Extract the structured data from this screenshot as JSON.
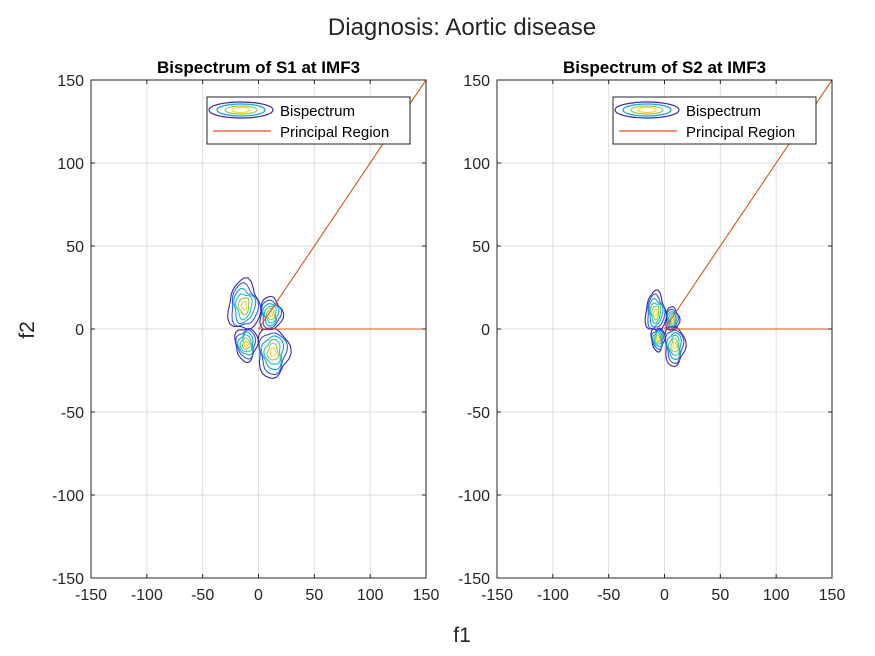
{
  "figure": {
    "suptitle": "Diagnosis: Aortic disease",
    "xlabel": "f1",
    "ylabel": "f2"
  },
  "chart_data": [
    {
      "type": "contour",
      "title": "Bispectrum of S1 at IMF3",
      "xlim": [
        -150,
        150
      ],
      "ylim": [
        -150,
        150
      ],
      "xticks": [
        -150,
        -100,
        -50,
        0,
        50,
        100,
        150
      ],
      "yticks": [
        -150,
        -100,
        -50,
        0,
        50,
        100,
        150
      ],
      "xtick_labels": [
        "-150",
        "-100",
        "-50",
        "0",
        "50",
        "100",
        "150"
      ],
      "ytick_labels": [
        "-150",
        "-100",
        "-50",
        "0",
        "50",
        "100",
        "150"
      ],
      "grid": true,
      "legend": {
        "position": "top-right",
        "entries": [
          "Bispectrum",
          "Principal Region"
        ]
      },
      "series": [
        {
          "name": "Bispectrum",
          "kind": "contour",
          "lobes": [
            {
              "cx": -13,
              "cy": 14,
              "rx": 14,
              "ry": 15
            },
            {
              "cx": 11,
              "cy": 9,
              "rx": 10,
              "ry": 10
            },
            {
              "cx": 13,
              "cy": -14,
              "rx": 14,
              "ry": 15
            },
            {
              "cx": -11,
              "cy": -9,
              "rx": 10,
              "ry": 10
            }
          ],
          "levels": 6
        },
        {
          "name": "Principal Region",
          "kind": "line",
          "color": "#d95319",
          "segments": [
            {
              "x": [
                0,
                150
              ],
              "y": [
                0,
                150
              ]
            },
            {
              "x": [
                0,
                150
              ],
              "y": [
                0,
                0
              ]
            }
          ]
        }
      ]
    },
    {
      "type": "contour",
      "title": "Bispectrum of S2 at IMF3",
      "xlim": [
        -150,
        150
      ],
      "ylim": [
        -150,
        150
      ],
      "xticks": [
        -150,
        -100,
        -50,
        0,
        50,
        100,
        150
      ],
      "yticks": [
        -150,
        -100,
        -50,
        0,
        50,
        100,
        150
      ],
      "xtick_labels": [
        "-150",
        "-100",
        "-50",
        "0",
        "50",
        "100",
        "150"
      ],
      "ytick_labels": [
        "-150",
        "-100",
        "-50",
        "0",
        "50",
        "100",
        "150"
      ],
      "grid": true,
      "legend": {
        "position": "top-right",
        "entries": [
          "Bispectrum",
          "Principal Region"
        ]
      },
      "series": [
        {
          "name": "Bispectrum",
          "kind": "contour",
          "lobes": [
            {
              "cx": -8,
              "cy": 10,
              "rx": 9,
              "ry": 12
            },
            {
              "cx": 7,
              "cy": 6,
              "rx": 6,
              "ry": 7
            },
            {
              "cx": 9,
              "cy": -10,
              "rx": 9,
              "ry": 12
            },
            {
              "cx": -6,
              "cy": -6,
              "rx": 6,
              "ry": 7
            }
          ],
          "levels": 6
        },
        {
          "name": "Principal Region",
          "kind": "line",
          "color": "#d95319",
          "segments": [
            {
              "x": [
                0,
                150
              ],
              "y": [
                0,
                150
              ]
            },
            {
              "x": [
                0,
                150
              ],
              "y": [
                0,
                0
              ]
            }
          ]
        }
      ]
    }
  ],
  "colors": {
    "axis": "#262626",
    "grid": "#dfdfdf",
    "contour_levels": [
      "#3d26a8",
      "#2f5ee8",
      "#1a9fd9",
      "#28c5a7",
      "#8fcc52",
      "#f9d428"
    ],
    "principal_region": "#d95319"
  }
}
